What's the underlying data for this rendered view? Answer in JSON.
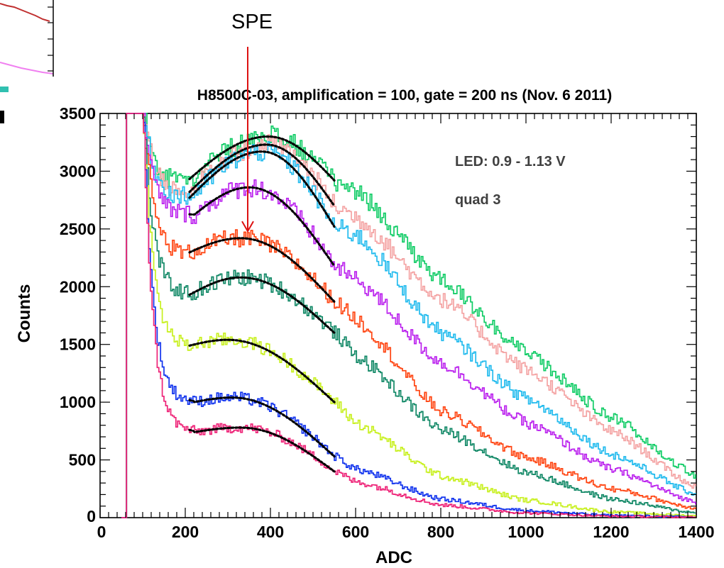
{
  "chart_data": {
    "type": "line",
    "title": "H8500C-03, amplification = 100, gate = 200 ns (Nov. 6 2011)",
    "xlabel": "ADC",
    "ylabel": "Counts",
    "xlim": [
      0,
      1400
    ],
    "ylim": [
      0,
      3500
    ],
    "x_ticks": [
      "0",
      "200",
      "400",
      "600",
      "800",
      "1000",
      "1200",
      "1400"
    ],
    "y_ticks": [
      "0",
      "500",
      "1000",
      "1500",
      "2000",
      "2500",
      "3000",
      "3500"
    ],
    "grid": false,
    "annotations": {
      "led": "LED: 0.9 - 1.13 V",
      "quad": "quad 3",
      "arrow_label": "SPE",
      "arrow_target": {
        "x": 340,
        "y": 2480
      }
    },
    "fit_range": [
      210,
      550
    ],
    "series": [
      {
        "color": "#11cc66",
        "valley_x": 200,
        "valley_y": 2900,
        "peak_x": 395,
        "peak_y": 3300,
        "y550": 2920,
        "y600": 2820,
        "y800": 2060,
        "y1000": 1420,
        "y1200": 870,
        "y1400": 360
      },
      {
        "color": "#f4a3a3",
        "valley_x": 210,
        "valley_y": 2820,
        "peak_x": 390,
        "peak_y": 3230,
        "y550": 2700,
        "y600": 2600,
        "y800": 1890,
        "y1000": 1280,
        "y1200": 750,
        "y1400": 260
      },
      {
        "color": "#22bbee",
        "valley_x": 210,
        "valley_y": 2770,
        "peak_x": 380,
        "peak_y": 3170,
        "y550": 2520,
        "y600": 2450,
        "y800": 1600,
        "y1000": 1030,
        "y1200": 550,
        "y1400": 200
      },
      {
        "color": "#bb22ee",
        "valley_x": 220,
        "valley_y": 2620,
        "peak_x": 350,
        "peak_y": 2860,
        "y550": 2180,
        "y600": 2060,
        "y800": 1340,
        "y1000": 820,
        "y1200": 420,
        "y1400": 130
      },
      {
        "color": "#ff4411",
        "valley_x": 200,
        "valley_y": 2280,
        "peak_x": 330,
        "peak_y": 2420,
        "y550": 1870,
        "y600": 1720,
        "y800": 920,
        "y1000": 520,
        "y1200": 250,
        "y1400": 80
      },
      {
        "color": "#118866",
        "valley_x": 210,
        "valley_y": 1930,
        "peak_x": 330,
        "peak_y": 2080,
        "y550": 1600,
        "y600": 1400,
        "y800": 760,
        "y1000": 390,
        "y1200": 160,
        "y1400": 40
      },
      {
        "color": "#c8f020",
        "valley_x": 200,
        "valley_y": 1480,
        "peak_x": 300,
        "peak_y": 1540,
        "y550": 1000,
        "y600": 820,
        "y800": 360,
        "y1000": 150,
        "y1200": 50,
        "y1400": 15
      },
      {
        "color": "#1133ee",
        "valley_x": 220,
        "valley_y": 1000,
        "peak_x": 310,
        "peak_y": 1040,
        "y550": 530,
        "y600": 420,
        "y800": 160,
        "y1000": 60,
        "y1200": 20,
        "y1400": 5
      },
      {
        "color": "#ee2277",
        "valley_x": 220,
        "valley_y": 740,
        "peak_x": 330,
        "peak_y": 780,
        "y550": 400,
        "y600": 310,
        "y800": 110,
        "y1000": 40,
        "y1200": 12,
        "y1400": 3
      }
    ]
  }
}
